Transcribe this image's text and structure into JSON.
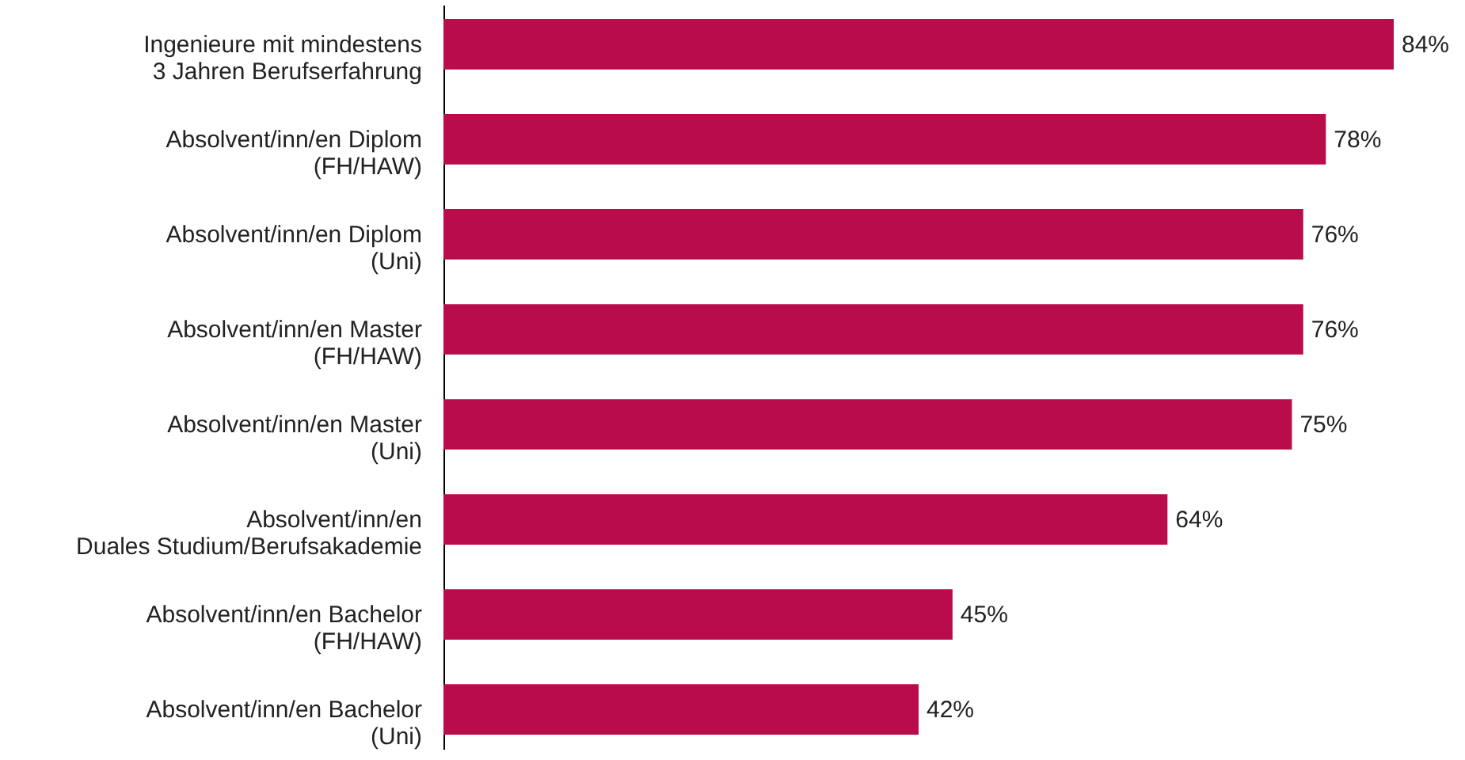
{
  "chart_data": {
    "type": "bar",
    "orientation": "horizontal",
    "categories": [
      "Ingenieure mit mindestens\n3 Jahren Berufserfahrung",
      "Absolvent/inn/en Diplom\n(FH/HAW)",
      "Absolvent/inn/en Diplom\n(Uni)",
      "Absolvent/inn/en Master\n(FH/HAW)",
      "Absolvent/inn/en Master\n(Uni)",
      "Absolvent/inn/en\nDuales Studium/Berufsakademie",
      "Absolvent/inn/en Bachelor\n(FH/HAW)",
      "Absolvent/inn/en Bachelor\n(Uni)"
    ],
    "values": [
      84,
      78,
      76,
      76,
      75,
      64,
      45,
      42
    ],
    "value_labels": [
      "84%",
      "78%",
      "76%",
      "76%",
      "75%",
      "64%",
      "45%",
      "42%"
    ],
    "color": "#b80c4b",
    "grid": false
  }
}
